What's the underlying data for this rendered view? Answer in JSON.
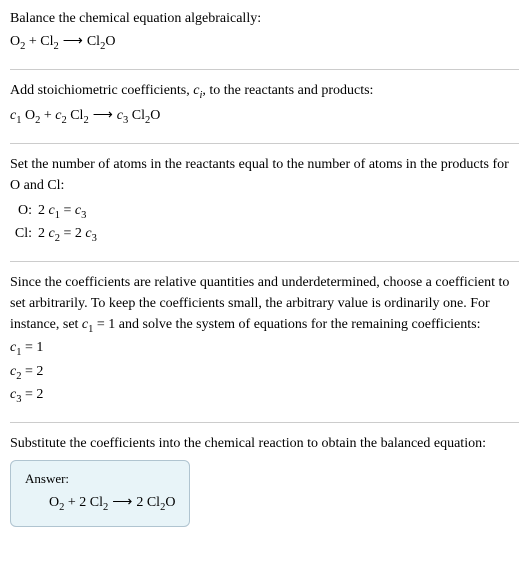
{
  "colors": {
    "background": "#ffffff",
    "text": "#000000",
    "divider": "#cccccc",
    "answer_bg": "#e8f4f8",
    "answer_border": "#b0c4d0"
  },
  "typography": {
    "font_family": "Georgia, 'Times New Roman', serif",
    "body_fontsize": 14,
    "line_height": 1.5
  },
  "section1": {
    "title": "Balance the chemical equation algebraically:",
    "reactant1": "O",
    "reactant1_sub": "2",
    "plus": " + ",
    "reactant2": "Cl",
    "reactant2_sub": "2",
    "arrow": "⟶",
    "product": "Cl",
    "product_sub1": "2",
    "product_tail": "O"
  },
  "section2": {
    "title_a": "Add stoichiometric coefficients, ",
    "title_ci": "c",
    "title_ci_sub": "i",
    "title_b": ", to the reactants and products:",
    "c1": "c",
    "c1_sub": "1",
    "sp": " ",
    "r1": "O",
    "r1_sub": "2",
    "plus": " + ",
    "c2": "c",
    "c2_sub": "2",
    "r2": "Cl",
    "r2_sub": "2",
    "arrow": "⟶",
    "c3": "c",
    "c3_sub": "3",
    "p": "Cl",
    "p_sub": "2",
    "p_tail": "O"
  },
  "section3": {
    "title": "Set the number of atoms in the reactants equal to the number of atoms in the products for O and Cl:",
    "row1_label": "O:",
    "row1_lhs_coef": "2 ",
    "row1_lhs_c": "c",
    "row1_lhs_sub": "1",
    "row1_eq": " = ",
    "row1_rhs_c": "c",
    "row1_rhs_sub": "3",
    "row2_label": "Cl:",
    "row2_lhs_coef": "2 ",
    "row2_lhs_c": "c",
    "row2_lhs_sub": "2",
    "row2_eq": " = ",
    "row2_rhs_coef": "2 ",
    "row2_rhs_c": "c",
    "row2_rhs_sub": "3"
  },
  "section4": {
    "text_a": "Since the coefficients are relative quantities and underdetermined, choose a coefficient to set arbitrarily. To keep the coefficients small, the arbitrary value is ordinarily one. For instance, set ",
    "c1": "c",
    "c1_sub": "1",
    "text_b": " = 1 and solve the system of equations for the remaining coefficients:",
    "line1_c": "c",
    "line1_sub": "1",
    "line1_val": " = 1",
    "line2_c": "c",
    "line2_sub": "2",
    "line2_val": " = 2",
    "line3_c": "c",
    "line3_sub": "3",
    "line3_val": " = 2"
  },
  "section5": {
    "title": "Substitute the coefficients into the chemical reaction to obtain the balanced equation:",
    "answer_label": "Answer:",
    "r1": "O",
    "r1_sub": "2",
    "plus": " + 2 ",
    "r2": "Cl",
    "r2_sub": "2",
    "arrow": "⟶",
    "prod_coef": "2 ",
    "p": "Cl",
    "p_sub": "2",
    "p_tail": "O"
  }
}
